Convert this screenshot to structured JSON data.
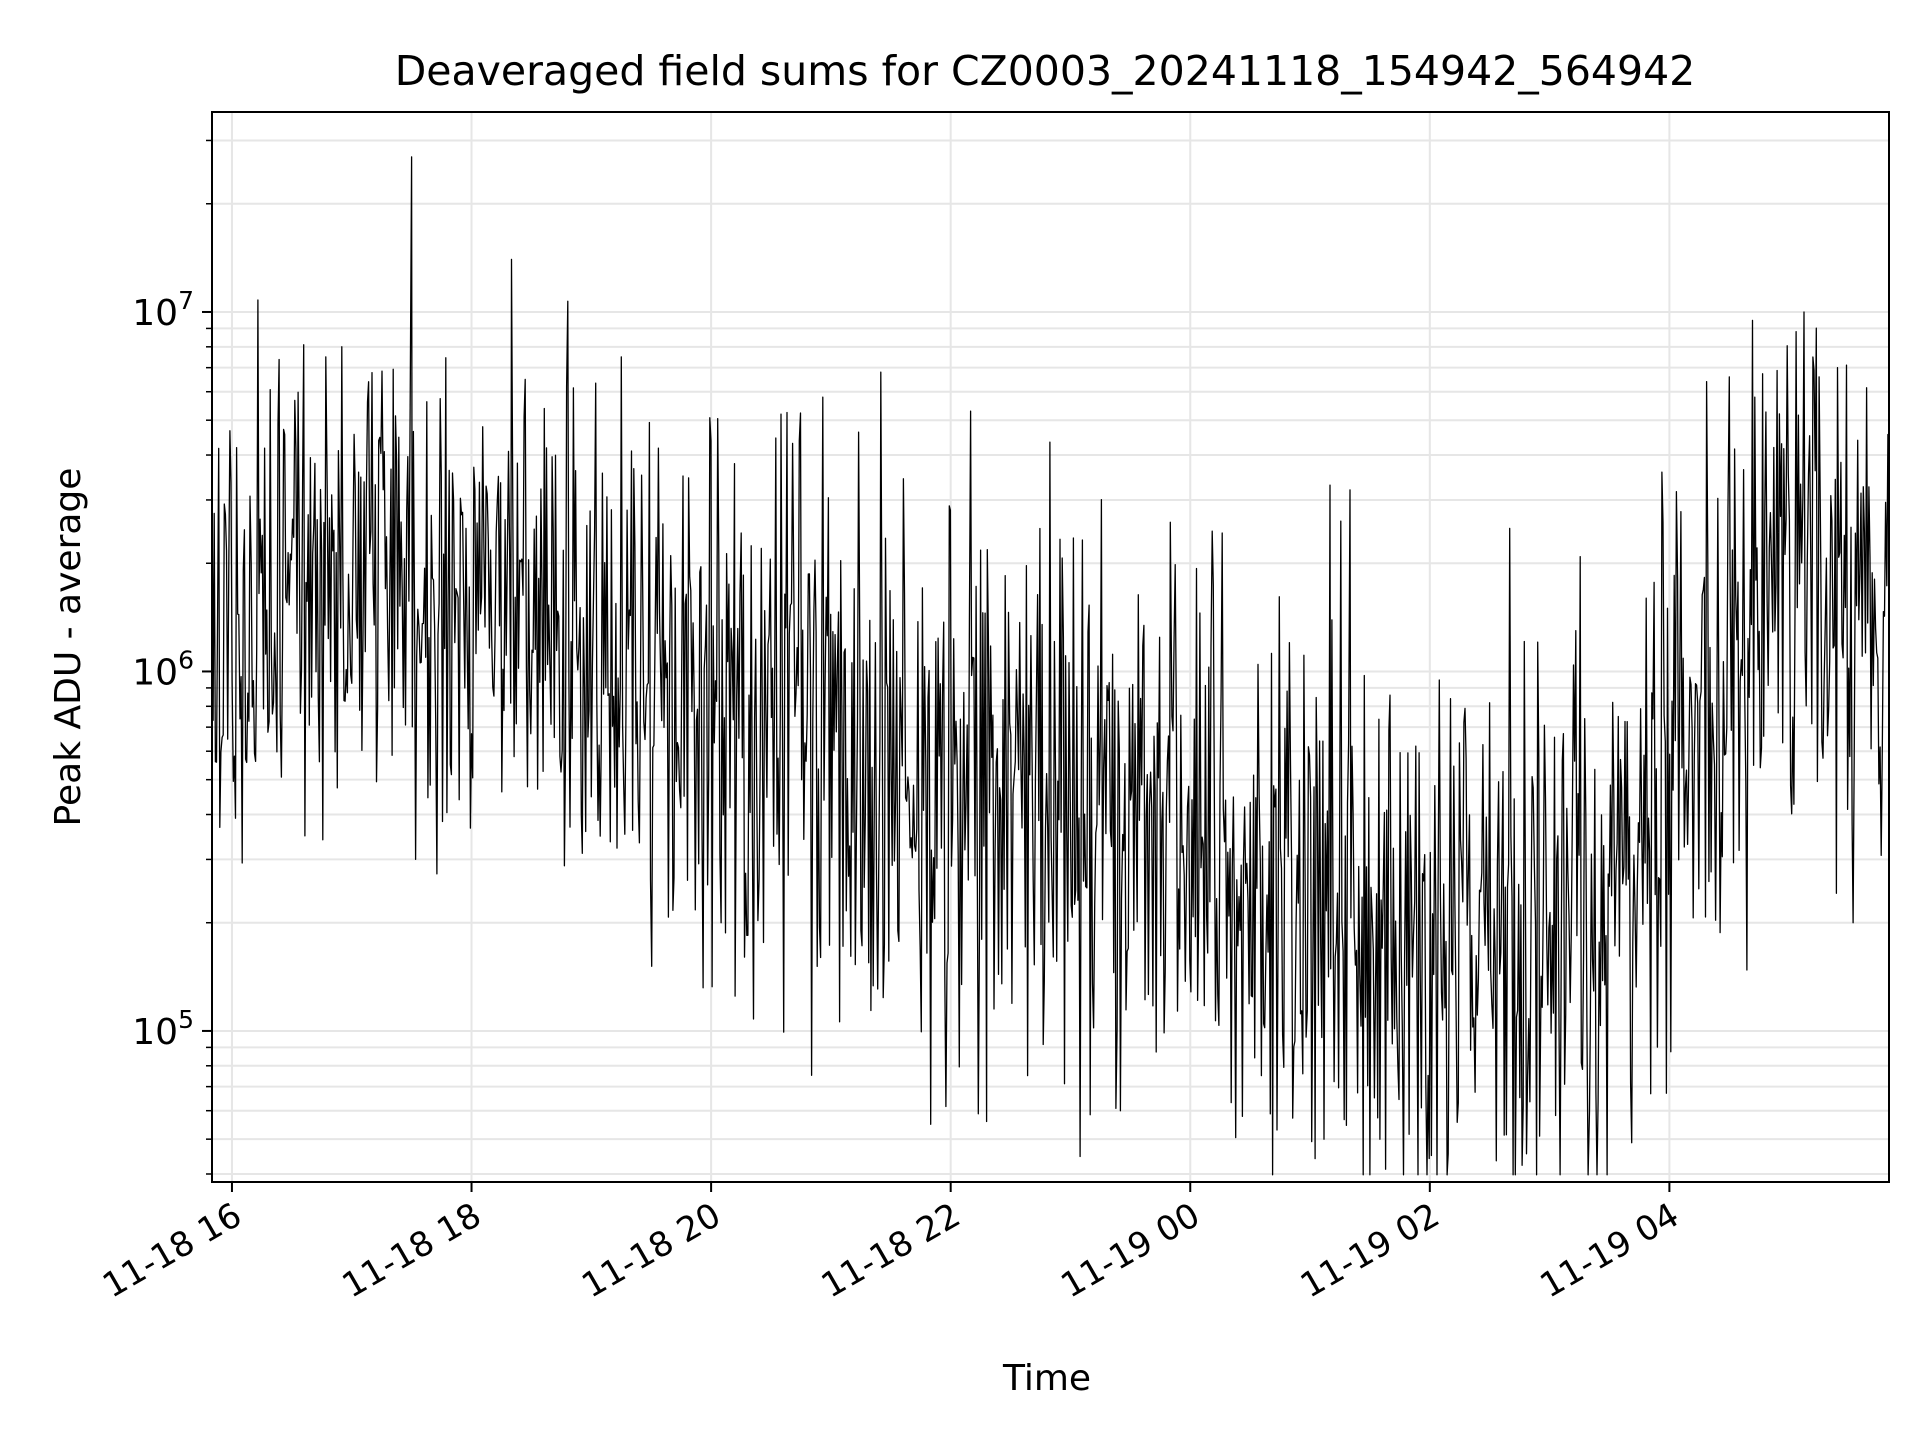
{
  "chart_data": {
    "type": "line",
    "title": "Deaveraged field sums for CZ0003_20241118_154942_564942",
    "xlabel": "Time",
    "ylabel": "Peak ADU - average",
    "yscale": "log",
    "ylim": [
      38000,
      36000000
    ],
    "xlim": [
      "2024-11-18 15:50",
      "2024-11-19 05:50"
    ],
    "grid": true,
    "legend": "none",
    "line_color": "#000000",
    "ytick_labels": [
      {
        "value": 100000,
        "base": "10",
        "exp": "5"
      },
      {
        "value": 1000000,
        "base": "10",
        "exp": "6"
      },
      {
        "value": 10000000,
        "base": "10",
        "exp": "7"
      }
    ],
    "xtick_labels": [
      {
        "time": "2024-11-18 16:00",
        "label": "11-18 16"
      },
      {
        "time": "2024-11-18 18:00",
        "label": "11-18 18"
      },
      {
        "time": "2024-11-18 20:00",
        "label": "11-18 20"
      },
      {
        "time": "2024-11-18 22:00",
        "label": "11-18 22"
      },
      {
        "time": "2024-11-19 00:00",
        "label": "11-19 00"
      },
      {
        "time": "2024-11-19 02:00",
        "label": "11-19 02"
      },
      {
        "time": "2024-11-19 04:00",
        "label": "11-19 04"
      }
    ],
    "series": [
      {
        "x": [
          "2024-11-18 15:50",
          "2024-11-18 16:00",
          "2024-11-18 16:15",
          "2024-11-18 16:30",
          "2024-11-18 17:00",
          "2024-11-18 17:30",
          "2024-11-18 18:00",
          "2024-11-18 18:30",
          "2024-11-18 19:00",
          "2024-11-18 19:30",
          "2024-11-18 20:00",
          "2024-11-18 20:30",
          "2024-11-18 21:00",
          "2024-11-18 21:30",
          "2024-11-18 22:00",
          "2024-11-18 22:30",
          "2024-11-18 23:00",
          "2024-11-18 23:30",
          "2024-11-19 00:00",
          "2024-11-19 00:30",
          "2024-11-19 01:00",
          "2024-11-19 01:30",
          "2024-11-19 02:00",
          "2024-11-19 02:30",
          "2024-11-19 03:00",
          "2024-11-19 03:30",
          "2024-11-19 04:00",
          "2024-11-19 04:30",
          "2024-11-19 05:00",
          "2024-11-19 05:30",
          "2024-11-19 05:50"
        ],
        "values": [
          900000,
          1200000,
          1500000,
          1500000,
          1600000,
          1700000,
          1500000,
          1400000,
          1200000,
          1000000,
          800000,
          750000,
          650000,
          600000,
          550000,
          500000,
          450000,
          380000,
          320000,
          250000,
          200000,
          170000,
          150000,
          160000,
          170000,
          200000,
          450000,
          1100000,
          1700000,
          1800000,
          1500000
        ],
        "spread": [
          0.35,
          0.35,
          0.3,
          0.3,
          0.3,
          0.3,
          0.3,
          0.3,
          0.35,
          0.35,
          0.4,
          0.4,
          0.4,
          0.4,
          0.4,
          0.4,
          0.4,
          0.4,
          0.4,
          0.4,
          0.4,
          0.4,
          0.4,
          0.4,
          0.4,
          0.4,
          0.4,
          0.35,
          0.35,
          0.35,
          0.35
        ]
      }
    ],
    "spikes": [
      {
        "time": "2024-11-18 16:13",
        "value": 10800000
      },
      {
        "time": "2024-11-18 16:47",
        "value": 7500000
      },
      {
        "time": "2024-11-18 16:55",
        "value": 8000000
      },
      {
        "time": "2024-11-18 17:30",
        "value": 27000000
      },
      {
        "time": "2024-11-18 18:20",
        "value": 14000000
      },
      {
        "time": "2024-11-18 19:15",
        "value": 7500000
      },
      {
        "time": "2024-11-18 21:25",
        "value": 6800000
      },
      {
        "time": "2024-11-18 22:10",
        "value": 5300000
      },
      {
        "time": "2024-11-18 20:35",
        "value": 5200000
      },
      {
        "time": "2024-11-18 23:50",
        "value": 2600000
      },
      {
        "time": "2024-11-19 01:10",
        "value": 3300000
      },
      {
        "time": "2024-11-19 01:20",
        "value": 3200000
      },
      {
        "time": "2024-11-19 02:40",
        "value": 2500000
      },
      {
        "time": "2024-11-19 04:30",
        "value": 6600000
      },
      {
        "time": "2024-11-19 05:15",
        "value": 6600000
      },
      {
        "time": "2024-11-18 17:32",
        "value": 300000
      },
      {
        "time": "2024-11-18 18:55",
        "value": 400000
      },
      {
        "time": "2024-11-18 20:05",
        "value": 200000
      },
      {
        "time": "2024-11-18 20:12",
        "value": 125000
      },
      {
        "time": "2024-11-18 21:50",
        "value": 55000
      },
      {
        "time": "2024-11-18 22:18",
        "value": 56000
      },
      {
        "time": "2024-11-18 23:25",
        "value": 60000
      },
      {
        "time": "2024-11-19 01:07",
        "value": 50000
      },
      {
        "time": "2024-11-19 01:35",
        "value": 50000
      },
      {
        "time": "2024-11-19 02:55",
        "value": 51000
      },
      {
        "time": "2024-11-19 03:20",
        "value": 60000
      },
      {
        "time": "2024-11-19 05:32",
        "value": 200000
      }
    ]
  }
}
